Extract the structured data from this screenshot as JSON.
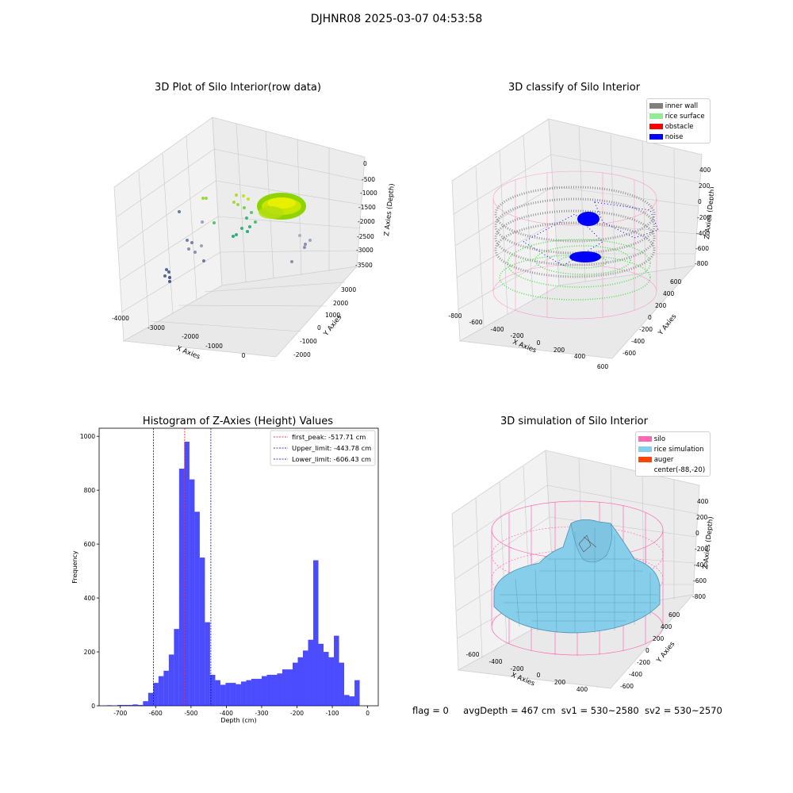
{
  "suptitle": "DJHNR08 2025-03-07 04:53:58",
  "panels": {
    "tl": {
      "title": "3D Plot of Silo Interior(row data)",
      "xlabel": "X Axies",
      "ylabel": "Y Axies",
      "zlabel": "Z Axies (Depth)",
      "xticks": [
        "-4000",
        "-3000",
        "-2000",
        "-1000",
        "0"
      ],
      "yticks": [
        "-2000",
        "-1000",
        "0",
        "1000",
        "2000",
        "3000"
      ],
      "zticks": [
        "0",
        "-500",
        "-1000",
        "-1500",
        "-2000",
        "-2500",
        "-3000",
        "-3500"
      ]
    },
    "tr": {
      "title": "3D classify of Silo Interior",
      "xlabel": "X Axies",
      "ylabel": "Y Axies",
      "zlabel": "Z Axies (Depth)",
      "xticks": [
        "-800",
        "-600",
        "-400",
        "-200",
        "0",
        "200",
        "400",
        "600"
      ],
      "yticks": [
        "-600",
        "-400",
        "-200",
        "0",
        "200",
        "400",
        "600"
      ],
      "zticks": [
        "400",
        "200",
        "0",
        "-200",
        "-400",
        "-600",
        "-800"
      ],
      "legend": [
        {
          "label": "inner wall",
          "color": "#808080"
        },
        {
          "label": "rice surface",
          "color": "#90ee90"
        },
        {
          "label": "obstacle",
          "color": "#ff0000"
        },
        {
          "label": "noise",
          "color": "#0000ff"
        }
      ]
    },
    "br": {
      "title": "3D simulation of Silo Interior",
      "xlabel": "X Axies",
      "ylabel": "Y Axies",
      "zlabel": "Z Axies (Depth)",
      "xticks": [
        "-600",
        "-400",
        "-200",
        "0",
        "200",
        "400"
      ],
      "yticks": [
        "-600",
        "-400",
        "-200",
        "0",
        "200",
        "400",
        "600"
      ],
      "zticks": [
        "400",
        "200",
        "0",
        "-200",
        "-400",
        "-600",
        "-800"
      ],
      "legend": [
        {
          "label": "silo",
          "color": "#ff69b4"
        },
        {
          "label": "rice simulation",
          "color": "#87ceeb"
        },
        {
          "label": "auger",
          "color": "#ff4500"
        },
        {
          "label": "center(-88,-20)",
          "color": "none"
        }
      ]
    }
  },
  "footer": {
    "flag": "flag = 0",
    "avg": "avgDepth = 467 cm",
    "sv1": "sv1 = 530~2580",
    "sv2": "sv2 = 530~2570"
  },
  "chart_data": {
    "type": "bar",
    "title": "Histogram of Z-Axies (Height) Values",
    "xlabel": "Depth (cm)",
    "ylabel": "Frequency",
    "xlim": [
      -760,
      30
    ],
    "ylim": [
      0,
      1030
    ],
    "xticks": [
      -700,
      -600,
      -500,
      -400,
      -300,
      -200,
      -100,
      0
    ],
    "yticks": [
      0,
      200,
      400,
      600,
      800,
      1000
    ],
    "bin_start": -738,
    "bin_width": 14.6,
    "values": [
      2,
      0,
      3,
      3,
      3,
      5,
      3,
      17,
      48,
      85,
      110,
      130,
      190,
      285,
      880,
      980,
      840,
      720,
      550,
      310,
      115,
      95,
      78,
      85,
      85,
      80,
      90,
      95,
      100,
      100,
      110,
      115,
      115,
      120,
      135,
      135,
      160,
      180,
      205,
      245,
      540,
      230,
      200,
      180,
      260,
      160,
      40,
      35,
      95
    ],
    "color": "#0000ff",
    "vlines": [
      {
        "label": "first_peak: -517.71 cm",
        "value": -517.71,
        "color": "#ff0000"
      },
      {
        "label": "Upper_limit: -443.78 cm",
        "value": -443.78,
        "color": "#0000cd"
      },
      {
        "label": "Lower_limit: -606.43 cm",
        "value": -606.43,
        "color": "#0000cd"
      }
    ],
    "legend_position": "upper right"
  }
}
